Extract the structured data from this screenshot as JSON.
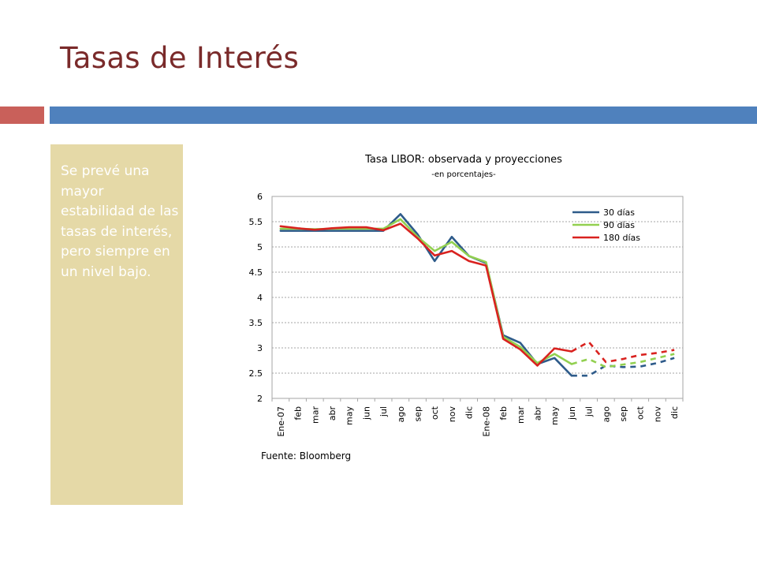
{
  "slide": {
    "title": "Tasas de Interés",
    "note": "Se prevé una mayor estabilidad de las tasas de interés, pero siempre en un nivel bajo."
  },
  "colors": {
    "title": "#7a2a2a",
    "accent_left": "#c9605a",
    "accent_right": "#4f81bd",
    "panel": "#e5d9a7"
  },
  "chart_data": {
    "type": "line",
    "title": "Tasa LIBOR: observada y proyecciones",
    "subtitle": "-en porcentajes-",
    "source": "Fuente: Bloomberg",
    "categories": [
      "Ene-07",
      "feb",
      "mar",
      "abr",
      "may",
      "jun",
      "jul",
      "ago",
      "sep",
      "oct",
      "nov",
      "dic",
      "Ene-08",
      "feb",
      "mar",
      "abr",
      "may",
      "jun",
      "jul",
      "ago",
      "sep",
      "oct",
      "nov",
      "dic"
    ],
    "ylim": [
      2,
      6
    ],
    "yticks": [
      "2",
      "2.5",
      "3",
      "3.5",
      "4",
      "4.5",
      "5",
      "5.5",
      "6"
    ],
    "grid": true,
    "legend_position": "top-right",
    "projection_starts_at_index": 17,
    "series": [
      {
        "name": "30 días",
        "color": "#2e5b8a",
        "values": [
          5.32,
          5.32,
          5.32,
          5.32,
          5.32,
          5.32,
          5.32,
          5.65,
          5.25,
          4.72,
          5.2,
          4.82,
          4.68,
          3.25,
          3.1,
          2.68,
          2.8,
          2.45,
          2.45,
          2.65,
          2.62,
          2.63,
          2.7,
          2.8
        ]
      },
      {
        "name": "90 días",
        "color": "#92d050",
        "values": [
          5.36,
          5.36,
          5.35,
          5.36,
          5.36,
          5.36,
          5.36,
          5.55,
          5.2,
          4.92,
          5.1,
          4.82,
          4.7,
          3.22,
          3.02,
          2.7,
          2.88,
          2.68,
          2.78,
          2.62,
          2.67,
          2.72,
          2.8,
          2.88
        ]
      },
      {
        "name": "180 días",
        "color": "#d9221f",
        "values": [
          5.41,
          5.37,
          5.34,
          5.37,
          5.39,
          5.39,
          5.33,
          5.46,
          5.17,
          4.83,
          4.92,
          4.72,
          4.63,
          3.18,
          2.97,
          2.65,
          2.99,
          2.93,
          3.12,
          2.72,
          2.78,
          2.86,
          2.9,
          2.96
        ]
      }
    ]
  }
}
